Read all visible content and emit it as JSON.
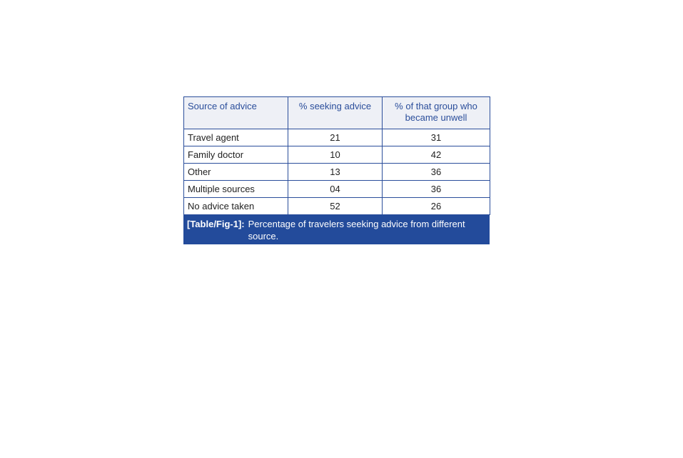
{
  "table": {
    "headers": [
      "Source of advice",
      "% seeking advice",
      "% of that group who became unwell"
    ],
    "rows": [
      [
        "Travel agent",
        "21",
        "31"
      ],
      [
        "Family doctor",
        "10",
        "42"
      ],
      [
        "Other",
        "13",
        "36"
      ],
      [
        "Multiple sources",
        "04",
        "36"
      ],
      [
        "No advice taken",
        "52",
        "26"
      ]
    ]
  },
  "caption": {
    "label": "[Table/Fig-1]:",
    "text": "Percentage of travelers seeking advice from different source."
  },
  "colors": {
    "border": "#2b4e9b",
    "header_bg": "#eef0f6",
    "caption_bg": "#234b9b"
  }
}
